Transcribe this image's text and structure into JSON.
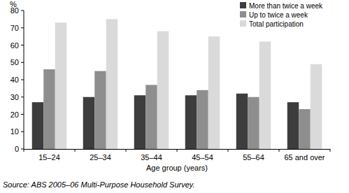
{
  "chart_data": {
    "type": "bar",
    "y_label": "%",
    "x_label": "Age group (years)",
    "source": "Source: ABS 2005–06 Multi-Purpose Household Survey.",
    "categories": [
      "15–24",
      "25–34",
      "35–44",
      "45–54",
      "55–64",
      "65 and over"
    ],
    "series": [
      {
        "name": "More than twice a week",
        "color": "#3d3d3d",
        "values": [
          27,
          30,
          31,
          31,
          32,
          27
        ]
      },
      {
        "name": "Up to twice a week",
        "color": "#8e8e8e",
        "values": [
          46,
          45,
          37,
          34,
          30,
          23
        ]
      },
      {
        "name": "Total participation",
        "color": "#dadada",
        "values": [
          73,
          75,
          68,
          65,
          62,
          49
        ]
      }
    ],
    "ylim": [
      0,
      80
    ],
    "yticks": [
      0,
      10,
      20,
      30,
      40,
      50,
      60,
      70,
      80
    ],
    "grid": false,
    "legend": "top-right"
  }
}
